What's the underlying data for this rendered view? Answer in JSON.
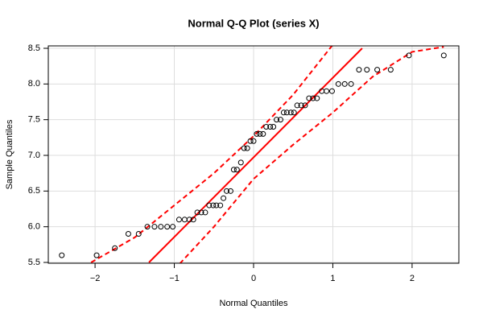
{
  "chart_data": {
    "type": "scatter",
    "title": "Normal Q-Q Plot (series X)",
    "x_label": "Normal Quantiles",
    "y_label": "Sample Quantiles",
    "x": [
      -2.42,
      -1.98,
      -1.75,
      -1.58,
      -1.45,
      -1.34,
      -1.25,
      -1.17,
      -1.09,
      -1.02,
      -0.94,
      -0.87,
      -0.81,
      -0.76,
      -0.71,
      -0.66,
      -0.61,
      -0.56,
      -0.51,
      -0.47,
      -0.42,
      -0.38,
      -0.34,
      -0.29,
      -0.25,
      -0.21,
      -0.16,
      -0.12,
      -0.08,
      -0.04,
      0,
      0.04,
      0.08,
      0.12,
      0.16,
      0.21,
      0.25,
      0.29,
      0.34,
      0.38,
      0.42,
      0.47,
      0.51,
      0.55,
      0.6,
      0.65,
      0.7,
      0.75,
      0.8,
      0.86,
      0.92,
      0.99,
      1.07,
      1.15,
      1.23,
      1.33,
      1.43,
      1.56,
      1.73,
      1.96,
      2.4
    ],
    "values": [
      5.6,
      5.6,
      5.7,
      5.9,
      5.9,
      6.0,
      6.0,
      6.0,
      6.0,
      6.0,
      6.1,
      6.1,
      6.1,
      6.1,
      6.2,
      6.2,
      6.2,
      6.3,
      6.3,
      6.3,
      6.3,
      6.4,
      6.5,
      6.5,
      6.8,
      6.8,
      6.9,
      7.1,
      7.1,
      7.2,
      7.2,
      7.3,
      7.3,
      7.3,
      7.4,
      7.4,
      7.4,
      7.5,
      7.5,
      7.6,
      7.6,
      7.6,
      7.6,
      7.7,
      7.7,
      7.7,
      7.8,
      7.8,
      7.8,
      7.9,
      7.9,
      7.9,
      8.0,
      8.0,
      8.0,
      8.2,
      8.2,
      8.2,
      8.2,
      8.4,
      8.4
    ],
    "color": "#000000",
    "reference_line": {
      "x": [
        -1.32,
        1.37
      ],
      "values": [
        5.5,
        8.5
      ],
      "color": "#ff0000"
    },
    "bands": [
      {
        "x": [
          -2.05,
          -1.5,
          -1,
          -0.5,
          0,
          0.5,
          1
        ],
        "values": [
          5.5,
          5.85,
          6.3,
          6.75,
          7.27,
          7.85,
          8.55
        ],
        "color": "#ff0000"
      },
      {
        "x": [
          -1,
          -0.5,
          0,
          0.5,
          1,
          1.5,
          2,
          2.4
        ],
        "values": [
          5.4,
          6.0,
          6.67,
          7.15,
          7.6,
          8.1,
          8.45,
          8.52
        ],
        "color": "#ff0000"
      }
    ],
    "xlim": [
      -2.59,
      2.59
    ],
    "ylim": [
      5.5,
      8.5
    ],
    "xticks": [
      {
        "value": -2,
        "label": "−2"
      },
      {
        "value": -1,
        "label": "−1"
      },
      0,
      1,
      2
    ],
    "yticks": [
      5.5,
      {
        "value": 6,
        "label": "6.0"
      },
      6.5,
      {
        "value": 7,
        "label": "7.0"
      },
      7.5,
      {
        "value": 8,
        "label": "8.0"
      },
      8.5
    ],
    "grid": true
  }
}
